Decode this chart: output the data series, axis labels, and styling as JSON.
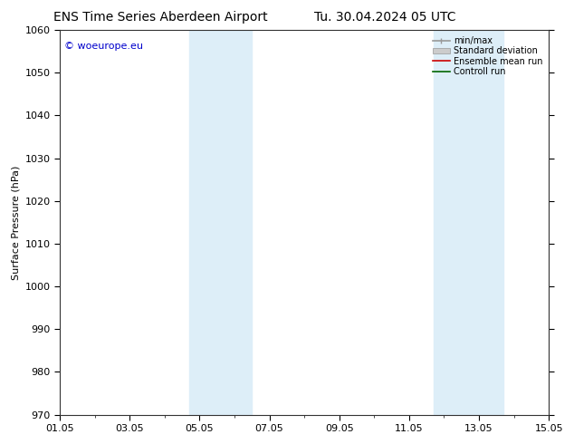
{
  "title_left": "ENS Time Series Aberdeen Airport",
  "title_right": "Tu. 30.04.2024 05 UTC",
  "ylabel": "Surface Pressure (hPa)",
  "ylim": [
    970,
    1060
  ],
  "yticks": [
    970,
    980,
    990,
    1000,
    1010,
    1020,
    1030,
    1040,
    1050,
    1060
  ],
  "xtick_labels": [
    "01.05",
    "03.05",
    "05.05",
    "07.05",
    "09.05",
    "11.05",
    "13.05",
    "15.05"
  ],
  "xtick_positions": [
    0,
    2,
    4,
    6,
    8,
    10,
    12,
    14
  ],
  "xlim": [
    0,
    14
  ],
  "shade_bands": [
    {
      "x_start": 3.7,
      "x_end": 5.5,
      "color": "#ddeef8",
      "alpha": 1.0
    },
    {
      "x_start": 10.7,
      "x_end": 12.7,
      "color": "#ddeef8",
      "alpha": 1.0
    }
  ],
  "watermark": "© woeurope.eu",
  "watermark_color": "#0000cc",
  "background_color": "#ffffff",
  "legend_items": [
    {
      "label": "min/max",
      "color": "#aaaaaa",
      "type": "line_caps"
    },
    {
      "label": "Standard deviation",
      "color": "#cccccc",
      "type": "fill"
    },
    {
      "label": "Ensemble mean run",
      "color": "#ff0000",
      "type": "line"
    },
    {
      "label": "Controll run",
      "color": "#007700",
      "type": "line"
    }
  ],
  "title_fontsize": 10,
  "axis_fontsize": 8,
  "tick_fontsize": 8
}
